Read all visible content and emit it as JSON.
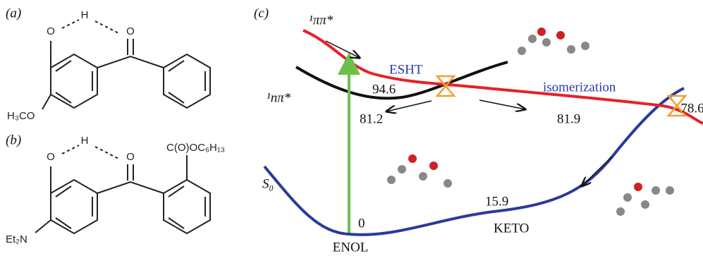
{
  "panel_a": {
    "label": "(a)",
    "atoms": [
      "O",
      "H",
      "O",
      "H₃CO"
    ]
  },
  "panel_b": {
    "label": "(b)",
    "atoms": [
      "O",
      "H",
      "O",
      "C(O)OC₆H₁₃",
      "Et₂N"
    ]
  },
  "panel_c": {
    "label": "(c)",
    "states": [
      "¹ππ*",
      "¹nπ*",
      "S₀"
    ],
    "annotations": [
      "ESHT",
      "isomerization"
    ],
    "energies": [
      "94.6",
      "81.2",
      "81.9",
      "78.6",
      "0",
      "15.9"
    ],
    "species": [
      "KETO",
      "ENOL"
    ]
  }
}
